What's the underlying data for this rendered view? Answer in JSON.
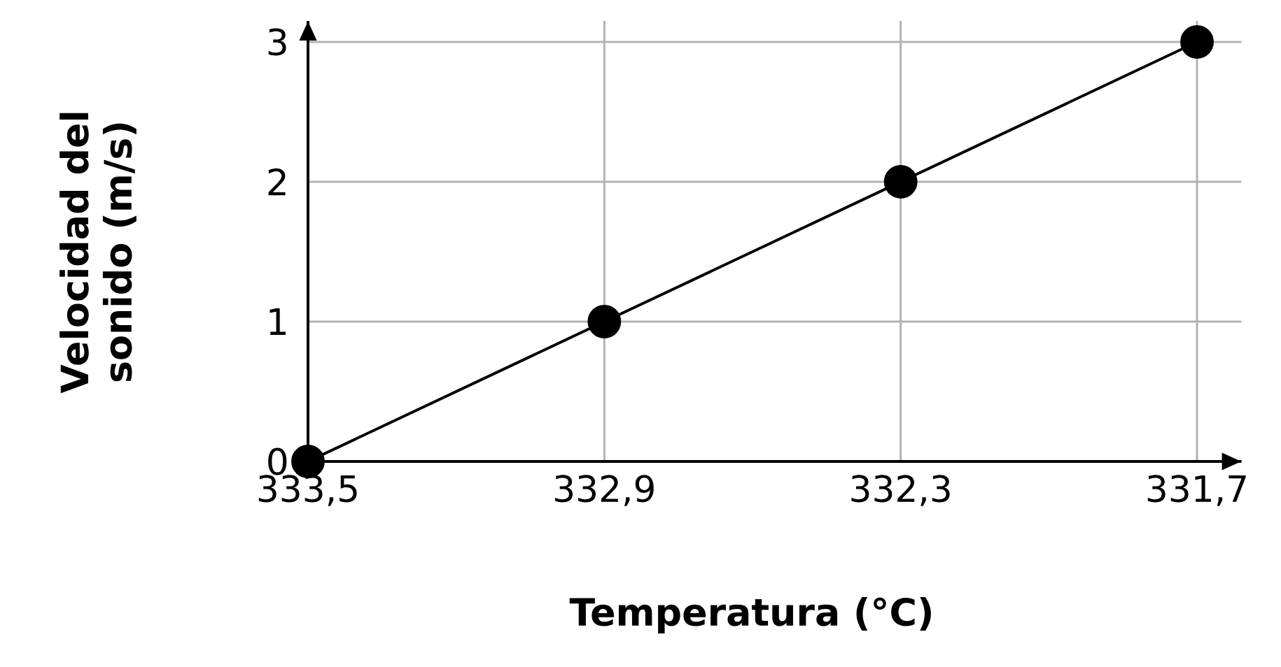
{
  "chart_data": {
    "type": "line",
    "xlabel": "Temperatura (°C)",
    "ylabel": "Velocidad del sonido (m/s)",
    "categories": [
      "333,5",
      "332,9",
      "332,3",
      "331,7"
    ],
    "values": [
      0,
      1,
      2,
      3
    ],
    "color": "#000000",
    "marker": "circle",
    "ylim": [
      0,
      3
    ],
    "yticks": [
      0,
      1,
      2,
      3
    ],
    "grid": true
  }
}
